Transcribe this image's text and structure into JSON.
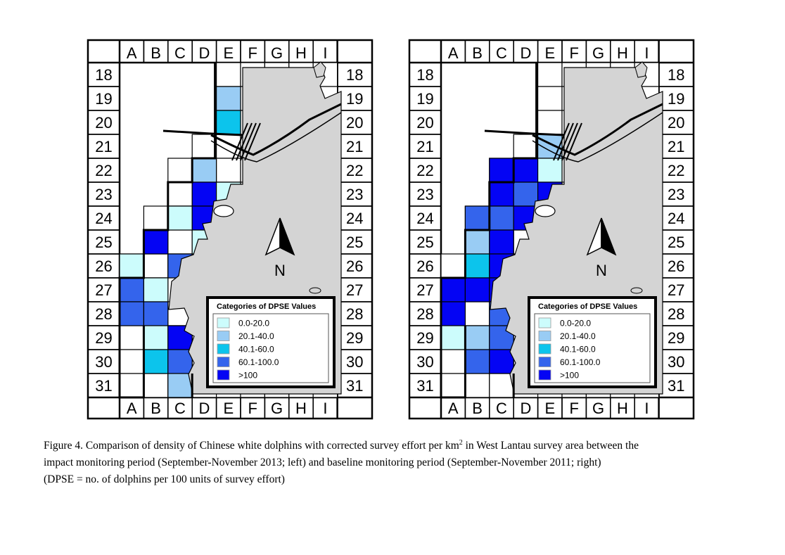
{
  "columns": [
    "A",
    "B",
    "C",
    "D",
    "E",
    "F",
    "G",
    "H",
    "I"
  ],
  "rows": [
    "18",
    "19",
    "20",
    "21",
    "22",
    "23",
    "24",
    "25",
    "26",
    "27",
    "28",
    "29",
    "30",
    "31"
  ],
  "north_label": "N",
  "legend": {
    "title": "Categories of DPSE Values",
    "categories": [
      {
        "label": "0.0-20.0",
        "color": "#ccfcfc"
      },
      {
        "label": "20.1-40.0",
        "color": "#99ccf4"
      },
      {
        "label": "40.1-60.0",
        "color": "#0cc4ec"
      },
      {
        "label": "60.1-100.0",
        "color": "#3464ec"
      },
      {
        "label": ">100",
        "color": "#0404f4"
      }
    ]
  },
  "colors": {
    "land": "#d4d4d4",
    "outline": "#000000"
  },
  "maps": [
    {
      "id": "impact-2013",
      "period": "September-November 2013",
      "cells": [
        {
          "col": "E",
          "row": "19",
          "cat": 1
        },
        {
          "col": "E",
          "row": "20",
          "cat": 2
        },
        {
          "col": "D",
          "row": "22",
          "cat": 1
        },
        {
          "col": "D",
          "row": "23",
          "cat": 4
        },
        {
          "col": "E",
          "row": "23",
          "cat": 0
        },
        {
          "col": "C",
          "row": "24",
          "cat": 0
        },
        {
          "col": "D",
          "row": "24",
          "cat": 4
        },
        {
          "col": "E",
          "row": "24",
          "cat": 0
        },
        {
          "col": "B",
          "row": "25",
          "cat": 4
        },
        {
          "col": "D",
          "row": "25",
          "cat": 0
        },
        {
          "col": "A",
          "row": "26",
          "cat": 0
        },
        {
          "col": "C",
          "row": "26",
          "cat": 3
        },
        {
          "col": "A",
          "row": "27",
          "cat": 3
        },
        {
          "col": "B",
          "row": "27",
          "cat": 0
        },
        {
          "col": "A",
          "row": "28",
          "cat": 3
        },
        {
          "col": "B",
          "row": "28",
          "cat": 3
        },
        {
          "col": "B",
          "row": "29",
          "cat": 0
        },
        {
          "col": "C",
          "row": "29",
          "cat": 4
        },
        {
          "col": "B",
          "row": "30",
          "cat": 2
        },
        {
          "col": "C",
          "row": "30",
          "cat": 3
        },
        {
          "col": "C",
          "row": "31",
          "cat": 1
        }
      ]
    },
    {
      "id": "baseline-2011",
      "period": "September-November 2011",
      "cells": [
        {
          "col": "E",
          "row": "21",
          "cat": 1
        },
        {
          "col": "C",
          "row": "22",
          "cat": 4
        },
        {
          "col": "D",
          "row": "22",
          "cat": 4
        },
        {
          "col": "E",
          "row": "22",
          "cat": 0
        },
        {
          "col": "C",
          "row": "23",
          "cat": 4
        },
        {
          "col": "D",
          "row": "23",
          "cat": 3
        },
        {
          "col": "E",
          "row": "23",
          "cat": 4
        },
        {
          "col": "B",
          "row": "24",
          "cat": 3
        },
        {
          "col": "C",
          "row": "24",
          "cat": 3
        },
        {
          "col": "D",
          "row": "24",
          "cat": 4
        },
        {
          "col": "B",
          "row": "25",
          "cat": 1
        },
        {
          "col": "C",
          "row": "25",
          "cat": 4
        },
        {
          "col": "B",
          "row": "26",
          "cat": 2
        },
        {
          "col": "C",
          "row": "26",
          "cat": 4
        },
        {
          "col": "A",
          "row": "27",
          "cat": 4
        },
        {
          "col": "B",
          "row": "27",
          "cat": 4
        },
        {
          "col": "C",
          "row": "27",
          "cat": 4
        },
        {
          "col": "A",
          "row": "28",
          "cat": 4
        },
        {
          "col": "C",
          "row": "28",
          "cat": 3
        },
        {
          "col": "A",
          "row": "29",
          "cat": 0
        },
        {
          "col": "B",
          "row": "29",
          "cat": 1
        },
        {
          "col": "C",
          "row": "29",
          "cat": 3
        },
        {
          "col": "B",
          "row": "30",
          "cat": 3
        },
        {
          "col": "C",
          "row": "30",
          "cat": 4
        }
      ]
    }
  ],
  "caption": {
    "line1_before_sup": "Figure 4.  Comparison of density of Chinese white dolphins with corrected survey effort per km",
    "line1_sup": "2",
    "line1_after_sup": " in West Lantau survey area between the",
    "line2": "impact monitoring period (September-November 2013; left) and baseline monitoring period (September-November 2011; right)",
    "line3": "(DPSE = no. of dolphins per 100 units of survey effort)"
  }
}
